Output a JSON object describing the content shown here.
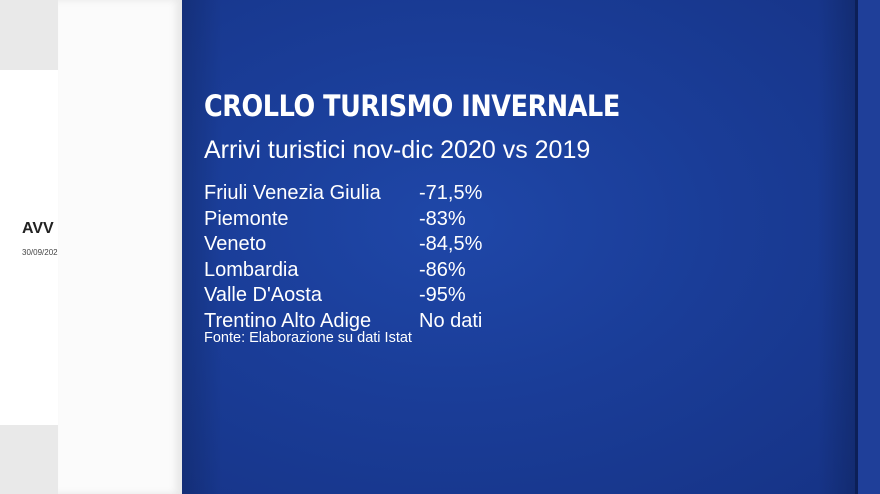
{
  "background_doc": {
    "title": "AVV",
    "date": "30/09/202"
  },
  "panel": {
    "title": "CROLLO TURISMO INVERNALE",
    "subtitle": "Arrivi turistici nov-dic 2020 vs 2019",
    "rows": [
      {
        "region": "Friuli Venezia Giulia",
        "value": "-71,5%"
      },
      {
        "region": "Piemonte",
        "value": "-83%"
      },
      {
        "region": "Veneto",
        "value": "-84,5%"
      },
      {
        "region": "Lombardia",
        "value": "-86%"
      },
      {
        "region": "Valle D'Aosta",
        "value": "-95%"
      },
      {
        "region": "Trentino Alto Adige",
        "value": "No dati"
      }
    ],
    "source": "Fonte: Elaborazione su dati Istat"
  },
  "colors": {
    "panel_blue": "#1a3d98",
    "text": "#ffffff"
  }
}
